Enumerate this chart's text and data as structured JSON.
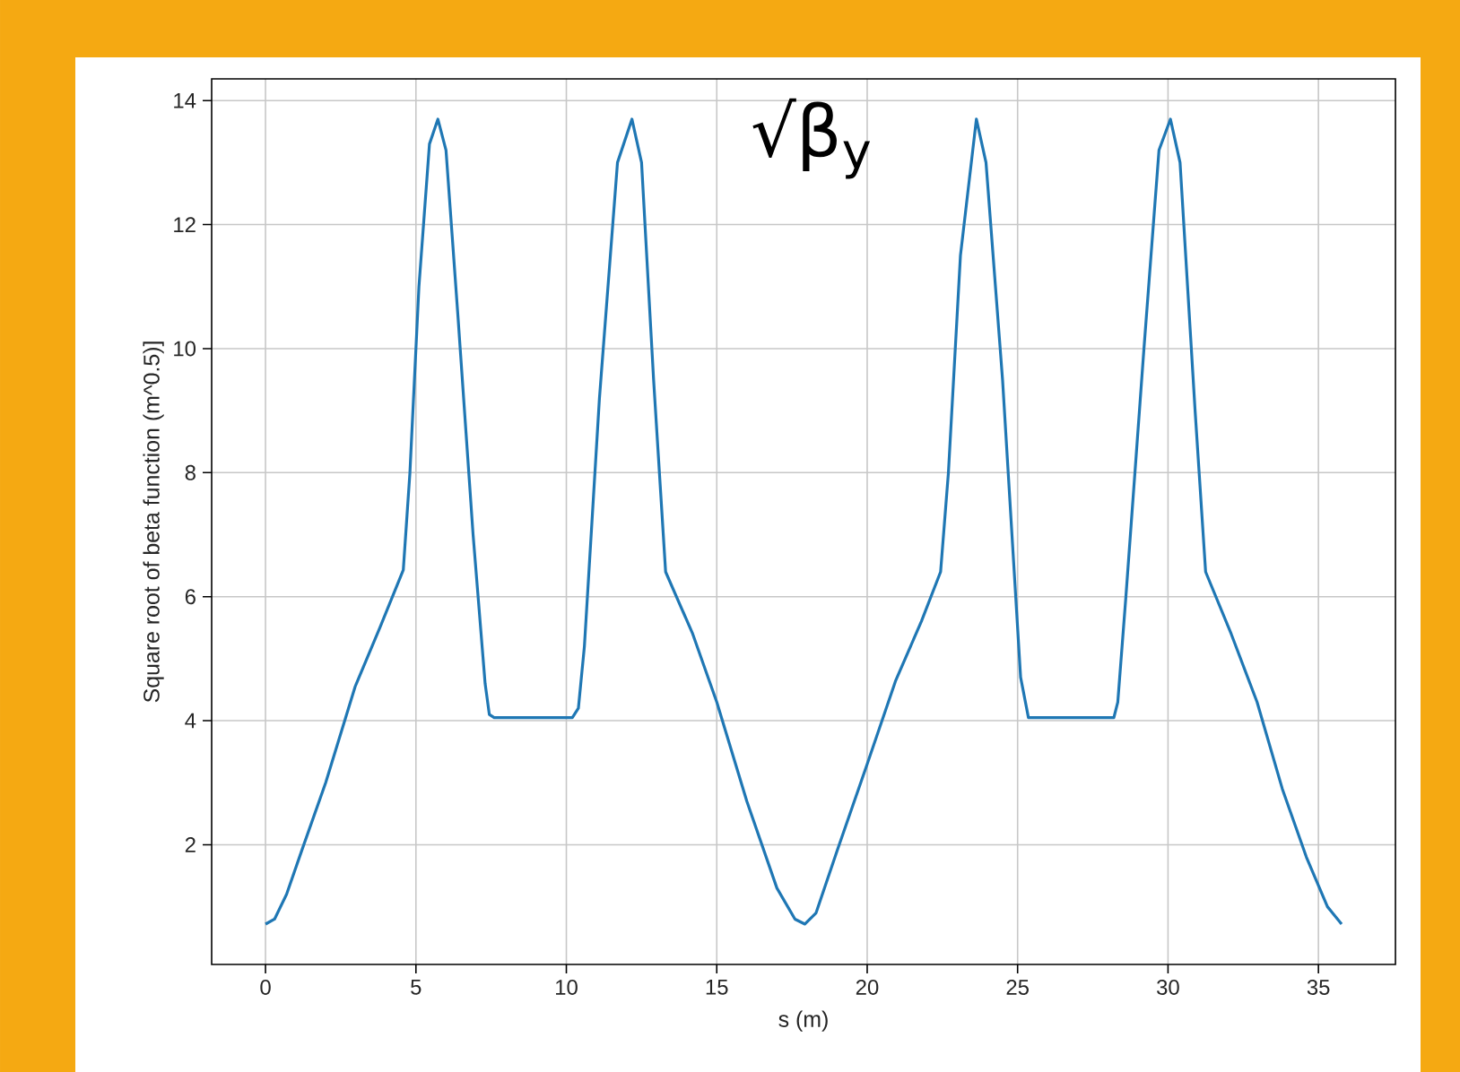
{
  "chart_data": {
    "type": "line",
    "xlabel": "s (m)",
    "ylabel": "Square root of beta function (m^0.5)]",
    "annotations": [
      "√β$_{y}$"
    ],
    "x": [
      0,
      0.3,
      0.7,
      1.2,
      2,
      2.98,
      3.8,
      4.58,
      4.8,
      5.1,
      5.45,
      5.73,
      6.0,
      6.4,
      6.9,
      7.3,
      7.44,
      7.6,
      10.2,
      10.4,
      10.6,
      11.1,
      11.7,
      12.18,
      12.5,
      12.9,
      13.3,
      14.2,
      15,
      16,
      17,
      17.6,
      17.93,
      18.3,
      19,
      20,
      20.95,
      21.8,
      22.44,
      22.7,
      23.1,
      23.63,
      23.95,
      24.5,
      25.1,
      25.36,
      25.5,
      28.2,
      28.33,
      28.6,
      29.2,
      29.7,
      30.08,
      30.4,
      30.9,
      31.25,
      32.1,
      32.96,
      33.8,
      34.6,
      35.3,
      35.77
    ],
    "series": [
      {
        "color": "#1f77b4",
        "values": [
          0.72,
          0.8,
          1.2,
          1.9,
          3.0,
          4.55,
          5.5,
          6.43,
          8.0,
          11.0,
          13.3,
          13.7,
          13.2,
          10.5,
          7.0,
          4.6,
          4.1,
          4.05,
          4.05,
          4.2,
          5.2,
          9.2,
          13.0,
          13.7,
          13.0,
          9.5,
          6.4,
          5.4,
          4.3,
          2.7,
          1.3,
          0.8,
          0.72,
          0.9,
          1.9,
          3.3,
          4.65,
          5.6,
          6.4,
          8.0,
          11.5,
          13.7,
          13.0,
          9.5,
          4.7,
          4.05,
          4.05,
          4.05,
          4.3,
          6.0,
          10.0,
          13.2,
          13.7,
          13.0,
          9.0,
          6.4,
          5.4,
          4.3,
          2.9,
          1.8,
          1.0,
          0.72
        ]
      }
    ],
    "xlim": [
      -1.79,
      37.56
    ],
    "ylim": [
      0.07,
      14.35
    ],
    "xticks": [
      0,
      5,
      10,
      15,
      20,
      25,
      30,
      35
    ],
    "yticks": [
      2,
      4,
      6,
      8,
      10,
      12,
      14
    ],
    "grid": true,
    "marker": "none",
    "line_style": "solid"
  }
}
